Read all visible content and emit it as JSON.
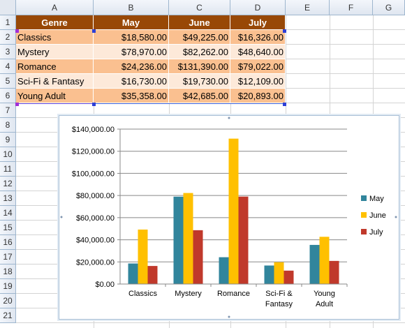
{
  "columns": [
    "A",
    "B",
    "C",
    "D",
    "E",
    "F",
    "G"
  ],
  "rows": [
    "1",
    "2",
    "3",
    "4",
    "5",
    "6",
    "7",
    "8",
    "9",
    "10",
    "11",
    "12",
    "13",
    "14",
    "15",
    "16",
    "17",
    "18",
    "19",
    "20",
    "21"
  ],
  "table": {
    "header": [
      "Genre",
      "May",
      "June",
      "July"
    ],
    "data": [
      [
        "Classics",
        "$18,580.00",
        "$49,225.00",
        "$16,326.00"
      ],
      [
        "Mystery",
        "$78,970.00",
        "$82,262.00",
        "$48,640.00"
      ],
      [
        "Romance",
        "$24,236.00",
        "$131,390.00",
        "$79,022.00"
      ],
      [
        "Sci-Fi & Fantasy",
        "$16,730.00",
        "$19,730.00",
        "$12,109.00"
      ],
      [
        "Young Adult",
        "$35,358.00",
        "$42,685.00",
        "$20,893.00"
      ]
    ]
  },
  "colors": {
    "header_bg": "#984806",
    "row_a": "#fac090",
    "row_b": "#fde9d9",
    "may": "#31859c",
    "june": "#ffc000",
    "july": "#c0392b"
  },
  "chart_data": {
    "type": "bar",
    "categories": [
      "Classics",
      "Mystery",
      "Romance",
      "Sci-Fi & Fantasy",
      "Young Adult"
    ],
    "category_lines": [
      [
        "Classics"
      ],
      [
        "Mystery"
      ],
      [
        "Romance"
      ],
      [
        "Sci-Fi &",
        "Fantasy"
      ],
      [
        "Young",
        "Adult"
      ]
    ],
    "series": [
      {
        "name": "May",
        "values": [
          18580,
          78970,
          24236,
          16730,
          35358
        ]
      },
      {
        "name": "June",
        "values": [
          49225,
          82262,
          131390,
          19730,
          42685
        ]
      },
      {
        "name": "July",
        "values": [
          16326,
          48640,
          79022,
          12109,
          20893
        ]
      }
    ],
    "ylim": [
      0,
      140000
    ],
    "yticks": [
      "$0.00",
      "$20,000.00",
      "$40,000.00",
      "$60,000.00",
      "$80,000.00",
      "$100,000.00",
      "$120,000.00",
      "$140,000.00"
    ],
    "grid": true,
    "legend": "right"
  }
}
